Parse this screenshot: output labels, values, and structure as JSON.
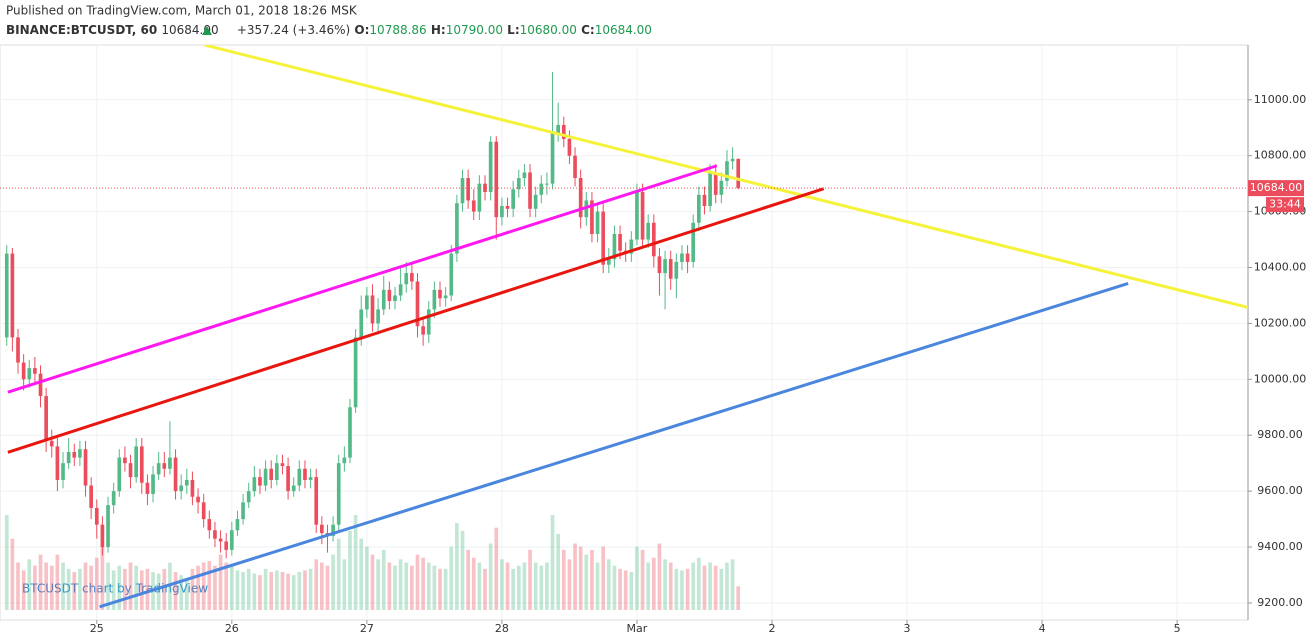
{
  "header": {
    "published": "Published on TradingView.com, March 01, 2018 18:26 MSK",
    "symbol": "BINANCE:BTCUSDT, 60",
    "last": "10684.00",
    "change": "+357.24 (+3.46%)",
    "o_label": "O:",
    "o": "10788.86",
    "h_label": "H:",
    "h": "10790.00",
    "l_label": "L:",
    "l": "10680.00",
    "c_label": "C:",
    "c": "10684.00"
  },
  "chart_data": {
    "type": "candlestick",
    "x": [
      8,
      9,
      10,
      11,
      12,
      13,
      14,
      15,
      16,
      17,
      18,
      19,
      20,
      21,
      22,
      23,
      24,
      25,
      26,
      27,
      28,
      29,
      30,
      31,
      32,
      33,
      34,
      35,
      36,
      37,
      38,
      39,
      40,
      41,
      42,
      43,
      44,
      45,
      46,
      47,
      48,
      49,
      50,
      51,
      52,
      53,
      54,
      55,
      56,
      57,
      58,
      59,
      60,
      61,
      62,
      63,
      64,
      65,
      66,
      67,
      68,
      69,
      70,
      71,
      72,
      73,
      74,
      75,
      76,
      77,
      78,
      79,
      80,
      81,
      82,
      83,
      84,
      85,
      86,
      87,
      88,
      89,
      90,
      91,
      92,
      93,
      94,
      95,
      96,
      97,
      98,
      99,
      100,
      101,
      102,
      103,
      104,
      105,
      106,
      107,
      108,
      109,
      110,
      111,
      112,
      113,
      114,
      115,
      116,
      117,
      118,
      119,
      120,
      121,
      122,
      123,
      124,
      125,
      126,
      127,
      128,
      129,
      130,
      131,
      132,
      133,
      134,
      135,
      136,
      137,
      138
    ],
    "open": [
      10150,
      10450,
      10150,
      10060,
      10000,
      10040,
      10020,
      9940,
      9780,
      9760,
      9640,
      9700,
      9740,
      9720,
      9750,
      9620,
      9540,
      9480,
      9400,
      9550,
      9600,
      9720,
      9700,
      9650,
      9760,
      9630,
      9590,
      9660,
      9700,
      9680,
      9720,
      9600,
      9620,
      9640,
      9580,
      9560,
      9500,
      9460,
      9430,
      9420,
      9390,
      9460,
      9500,
      9560,
      9600,
      9650,
      9620,
      9680,
      9640,
      9700,
      9690,
      9600,
      9620,
      9680,
      9640,
      9650,
      9480,
      9450,
      9440,
      9480,
      9700,
      9720,
      9900,
      10150,
      10250,
      10300,
      10200,
      10250,
      10320,
      10280,
      10300,
      10340,
      10380,
      10350,
      10190,
      10160,
      10250,
      10320,
      10290,
      10300,
      10450,
      10630,
      10720,
      10640,
      10600,
      10700,
      10670,
      10850,
      10580,
      10620,
      10610,
      10680,
      10720,
      10740,
      10610,
      10660,
      10700,
      10700,
      10880,
      10910,
      10860,
      10800,
      10720,
      10580,
      10640,
      10520,
      10600,
      10410,
      10430,
      10520,
      10460,
      10450,
      10500,
      10670,
      10500,
      10560,
      10440,
      10380,
      10430,
      10360,
      10420,
      10450,
      10420,
      10560,
      10660,
      10620,
      10740,
      10660,
      10710,
      10780,
      10788.86
    ],
    "high": [
      10480,
      10470,
      10180,
      10090,
      10070,
      10080,
      10050,
      9970,
      9820,
      9790,
      9740,
      9790,
      9770,
      9780,
      9780,
      9650,
      9570,
      9510,
      9580,
      9630,
      9750,
      9760,
      9730,
      9790,
      9790,
      9660,
      9690,
      9740,
      9740,
      9850,
      9750,
      9660,
      9680,
      9670,
      9610,
      9590,
      9530,
      9490,
      9460,
      9450,
      9490,
      9530,
      9590,
      9630,
      9690,
      9680,
      9710,
      9710,
      9730,
      9730,
      9720,
      9650,
      9710,
      9710,
      9680,
      9680,
      9510,
      9480,
      9510,
      9730,
      9760,
      9930,
      10180,
      10300,
      10330,
      10340,
      10290,
      10370,
      10350,
      10330,
      10400,
      10420,
      10410,
      10380,
      10220,
      10280,
      10350,
      10350,
      10330,
      10480,
      10660,
      10750,
      10750,
      10680,
      10730,
      10730,
      10870,
      10870,
      10650,
      10650,
      10710,
      10750,
      10770,
      10770,
      10690,
      10730,
      10740,
      11100,
      10990,
      10940,
      10890,
      10830,
      10750,
      10670,
      10670,
      10630,
      10630,
      10470,
      10550,
      10550,
      10490,
      10530,
      10700,
      10700,
      10590,
      10590,
      10470,
      10460,
      10460,
      10450,
      10480,
      10480,
      10590,
      10690,
      10690,
      10770,
      10770,
      10740,
      10820,
      10830,
      10790
    ],
    "low": [
      10120,
      10100,
      10020,
      9960,
      9970,
      9990,
      9900,
      9740,
      9720,
      9600,
      9610,
      9680,
      9690,
      9690,
      9580,
      9500,
      9430,
      9370,
      9380,
      9520,
      9580,
      9670,
      9610,
      9630,
      9590,
      9550,
      9560,
      9640,
      9650,
      9660,
      9570,
      9570,
      9590,
      9550,
      9520,
      9470,
      9430,
      9400,
      9380,
      9360,
      9370,
      9440,
      9480,
      9540,
      9580,
      9590,
      9600,
      9610,
      9620,
      9660,
      9570,
      9580,
      9600,
      9610,
      9610,
      9450,
      9410,
      9380,
      9420,
      9460,
      9670,
      9700,
      9880,
      10120,
      10220,
      10170,
      10160,
      10230,
      10250,
      10250,
      10280,
      10310,
      10320,
      10150,
      10120,
      10130,
      10220,
      10260,
      10260,
      10280,
      10420,
      10600,
      10610,
      10570,
      10570,
      10640,
      10640,
      10500,
      10550,
      10580,
      10580,
      10650,
      10690,
      10580,
      10580,
      10630,
      10660,
      10680,
      10850,
      10830,
      10770,
      10690,
      10540,
      10550,
      10490,
      10490,
      10380,
      10380,
      10400,
      10430,
      10420,
      10420,
      10480,
      10470,
      10470,
      10400,
      10300,
      10250,
      10320,
      10290,
      10390,
      10380,
      10400,
      10530,
      10590,
      10600,
      10630,
      10630,
      10690,
      10750,
      10680
    ],
    "close": [
      10450,
      10150,
      10060,
      10000,
      10040,
      10020,
      9940,
      9780,
      9760,
      9640,
      9700,
      9740,
      9720,
      9750,
      9620,
      9540,
      9480,
      9400,
      9550,
      9600,
      9720,
      9700,
      9650,
      9760,
      9630,
      9590,
      9660,
      9700,
      9680,
      9720,
      9600,
      9620,
      9640,
      9580,
      9560,
      9500,
      9460,
      9430,
      9420,
      9390,
      9460,
      9500,
      9560,
      9600,
      9650,
      9620,
      9680,
      9640,
      9700,
      9690,
      9600,
      9620,
      9680,
      9640,
      9650,
      9480,
      9450,
      9440,
      9480,
      9700,
      9720,
      9900,
      10150,
      10250,
      10300,
      10200,
      10250,
      10320,
      10280,
      10300,
      10340,
      10380,
      10350,
      10190,
      10160,
      10250,
      10320,
      10290,
      10300,
      10450,
      10630,
      10720,
      10640,
      10600,
      10700,
      10670,
      10850,
      10580,
      10620,
      10610,
      10680,
      10720,
      10740,
      10610,
      10660,
      10700,
      10700,
      10880,
      10910,
      10860,
      10800,
      10720,
      10580,
      10640,
      10520,
      10600,
      10410,
      10430,
      10520,
      10460,
      10450,
      10500,
      10670,
      10500,
      10560,
      10440,
      10380,
      10430,
      10360,
      10420,
      10450,
      10420,
      10560,
      10660,
      10620,
      10740,
      10660,
      10710,
      10780,
      10789,
      10684
    ],
    "volume": [
      600,
      450,
      300,
      250,
      320,
      280,
      350,
      300,
      280,
      350,
      300,
      260,
      240,
      260,
      300,
      280,
      330,
      400,
      300,
      250,
      280,
      260,
      300,
      280,
      250,
      260,
      240,
      230,
      260,
      300,
      240,
      220,
      200,
      260,
      280,
      300,
      310,
      280,
      350,
      300,
      280,
      250,
      240,
      260,
      230,
      220,
      260,
      240,
      250,
      240,
      230,
      220,
      240,
      250,
      260,
      320,
      300,
      280,
      350,
      450,
      320,
      500,
      600,
      450,
      400,
      350,
      320,
      380,
      300,
      280,
      320,
      300,
      280,
      350,
      330,
      300,
      280,
      260,
      260,
      400,
      550,
      500,
      380,
      330,
      300,
      260,
      420,
      520,
      320,
      300,
      260,
      280,
      300,
      380,
      300,
      280,
      300,
      600,
      480,
      380,
      320,
      420,
      400,
      350,
      380,
      300,
      400,
      320,
      280,
      260,
      250,
      240,
      400,
      380,
      300,
      330,
      420,
      320,
      300,
      260,
      250,
      260,
      300,
      330,
      280,
      300,
      280,
      260,
      300,
      320,
      150
    ],
    "up_color": "#53b987",
    "down_color": "#eb4d5c",
    "xlim": [
      6.8,
      228.6
    ],
    "ylim": [
      9139,
      11196
    ],
    "xticks": [
      {
        "value": 24,
        "label": "25"
      },
      {
        "value": 48,
        "label": "26"
      },
      {
        "value": 72,
        "label": "27"
      },
      {
        "value": 96,
        "label": "28"
      },
      {
        "value": 120,
        "label": "Mar"
      },
      {
        "value": 144,
        "label": "2"
      },
      {
        "value": 168,
        "label": "3"
      },
      {
        "value": 192,
        "label": "4"
      },
      {
        "value": 216,
        "label": "5"
      }
    ],
    "yticks": [
      {
        "value": 9200,
        "label": "9200.00"
      },
      {
        "value": 9400,
        "label": "9400.00"
      },
      {
        "value": 9600,
        "label": "9600.00"
      },
      {
        "value": 9800,
        "label": "9800.00"
      },
      {
        "value": 10000,
        "label": "10000.00"
      },
      {
        "value": 10200,
        "label": "10200.00"
      },
      {
        "value": 10400,
        "label": "10400.00"
      },
      {
        "value": 10600,
        "label": "10600.00"
      },
      {
        "value": 10800,
        "label": "10800.00"
      },
      {
        "value": 11000,
        "label": "11000.00"
      }
    ],
    "grid": true,
    "last_price": {
      "value": 10684,
      "label": "10684.00"
    },
    "countdown": "33:44",
    "lines": [
      {
        "color": "#f5f23a",
        "x": [
          43.2,
          228.6
        ],
        "y": [
          11196,
          10257
        ]
      },
      {
        "color": "#ff19f0",
        "x": [
          8.2,
          134.2
        ],
        "y": [
          9954,
          10764
        ]
      },
      {
        "color": "#e8160e",
        "x": [
          8.2,
          153.2
        ],
        "y": [
          9739,
          10682
        ]
      },
      {
        "color": "#4a86dd",
        "x": [
          24.5,
          207.3
        ],
        "y": [
          9186,
          10343
        ]
      }
    ],
    "watermark": "BTCUSDT chart by TradingView"
  }
}
